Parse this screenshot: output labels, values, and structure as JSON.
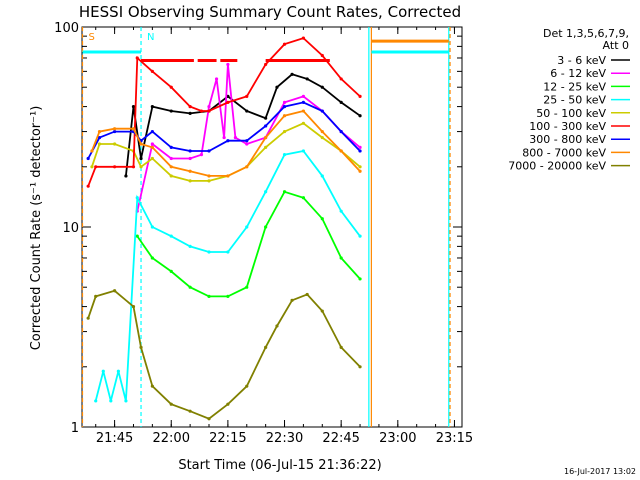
{
  "chart_data": {
    "type": "line",
    "title": "HESSI Observing Summary Count Rates, Corrected",
    "xlabel": "Start Time (06-Jul-15 21:36:22)",
    "ylabel": "Corrected Count Rate (s⁻¹ detector⁻¹)",
    "yscale": "log",
    "ylim": [
      1,
      100
    ],
    "xlim": [
      "21:36:22",
      "23:17:00"
    ],
    "x_ticks": [
      "21:45",
      "22:00",
      "22:15",
      "22:30",
      "22:45",
      "23:00",
      "23:15"
    ],
    "y_ticks": [
      "1",
      "10",
      "100"
    ],
    "footer": "16-Jul-2017 13:02",
    "legend": {
      "placement": "top-right",
      "header": [
        "Det 1,3,5,6,7,9,",
        "Att 0"
      ],
      "entries": [
        {
          "label": "3 - 6 keV",
          "color": "#000000"
        },
        {
          "label": "6 - 12 keV",
          "color": "#ff00ff"
        },
        {
          "label": "12 - 25 keV",
          "color": "#00ff00"
        },
        {
          "label": "25 - 50 keV",
          "color": "#00ffff"
        },
        {
          "label": "50 - 100 keV",
          "color": "#cccc00"
        },
        {
          "label": "100 - 300 keV",
          "color": "#ff0000"
        },
        {
          "label": "300 - 800 keV",
          "color": "#0000ff"
        },
        {
          "label": "800 - 7000 keV",
          "color": "#ff8800"
        },
        {
          "label": "7000 - 20000 keV",
          "color": "#808000"
        }
      ]
    },
    "markers": [
      {
        "label": "S",
        "x": "21:36:30",
        "color": "#ff8800"
      },
      {
        "label": "N",
        "x": "21:52:00",
        "color": "#00ffff"
      }
    ],
    "vlines": [
      {
        "x": "21:36:30",
        "color": "#ff8800",
        "style": "dashed"
      },
      {
        "x": "21:52:00",
        "color": "#00ffff",
        "style": "dashed"
      },
      {
        "x": "22:52:20",
        "color": "#00ffff",
        "style": "solid"
      },
      {
        "x": "22:53:00",
        "color": "#ff8800",
        "style": "solid"
      },
      {
        "x": "23:13:30",
        "color": "#00ffff",
        "style": "solid"
      },
      {
        "x": "23:13:50",
        "color": "#ff8800",
        "style": "dashed"
      }
    ],
    "flag_bars": [
      {
        "color": "#00ffff",
        "y": 75,
        "x": [
          "21:36:30",
          "21:52:00"
        ]
      },
      {
        "color": "#00ffff",
        "y": 75,
        "x": [
          "22:53:00",
          "23:13:30"
        ]
      },
      {
        "color": "#ff8800",
        "y": 85,
        "x": [
          "22:53:00",
          "23:13:30"
        ]
      },
      {
        "color": "#ff0000",
        "y": 68,
        "x": [
          "21:52:00",
          "22:06:00"
        ]
      },
      {
        "color": "#ff0000",
        "y": 68,
        "x": [
          "22:07:00",
          "22:12:00"
        ]
      },
      {
        "color": "#ff0000",
        "y": 68,
        "x": [
          "22:13:00",
          "22:17:30"
        ]
      },
      {
        "color": "#ff0000",
        "y": 68,
        "x": [
          "22:25:00",
          "22:42:00"
        ]
      }
    ],
    "series": [
      {
        "name": "3 - 6 keV",
        "color": "#000000",
        "x": [
          "21:48",
          "21:50",
          "21:52",
          "21:55",
          "22:00",
          "22:05",
          "22:10",
          "22:15",
          "22:20",
          "22:25",
          "22:28",
          "22:32",
          "22:36",
          "22:40",
          "22:45",
          "22:50"
        ],
        "y": [
          18,
          40,
          22,
          40,
          38,
          37,
          38,
          45,
          38,
          35,
          50,
          58,
          55,
          50,
          42,
          36
        ]
      },
      {
        "name": "6 - 12 keV",
        "color": "#ff00ff",
        "x": [
          "21:51",
          "21:55",
          "22:00",
          "22:05",
          "22:08",
          "22:10",
          "22:12",
          "22:14",
          "22:15",
          "22:17",
          "22:20",
          "22:25",
          "22:30",
          "22:35",
          "22:40",
          "22:45",
          "22:50"
        ],
        "y": [
          12,
          26,
          22,
          22,
          23,
          40,
          55,
          28,
          65,
          28,
          26,
          28,
          42,
          45,
          38,
          30,
          25
        ]
      },
      {
        "name": "12 - 25 keV",
        "color": "#00ff00",
        "x": [
          "21:51",
          "21:55",
          "22:00",
          "22:05",
          "22:10",
          "22:15",
          "22:20",
          "22:25",
          "22:30",
          "22:35",
          "22:40",
          "22:45",
          "22:50"
        ],
        "y": [
          9,
          7,
          6,
          5,
          4.5,
          4.5,
          5,
          10,
          15,
          14,
          11,
          7,
          5.5
        ]
      },
      {
        "name": "25 - 50 keV",
        "color": "#00ffff",
        "x": [
          "21:40",
          "21:42",
          "21:44",
          "21:46",
          "21:48",
          "21:51",
          "21:55",
          "22:00",
          "22:05",
          "22:10",
          "22:15",
          "22:20",
          "22:25",
          "22:30",
          "22:35",
          "22:40",
          "22:45",
          "22:50"
        ],
        "y": [
          1.35,
          1.9,
          1.35,
          1.9,
          1.35,
          14,
          10,
          9,
          8,
          7.5,
          7.5,
          10,
          15,
          23,
          24,
          18,
          12,
          9
        ]
      },
      {
        "name": "50 - 100 keV",
        "color": "#cccc00",
        "x": [
          "21:39",
          "21:41",
          "21:45",
          "21:50",
          "21:52",
          "21:55",
          "22:00",
          "22:05",
          "22:10",
          "22:15",
          "22:20",
          "22:25",
          "22:30",
          "22:35",
          "22:40",
          "22:45",
          "22:50"
        ],
        "y": [
          20,
          26,
          26,
          24,
          20,
          22,
          18,
          17,
          17,
          18,
          20,
          25,
          30,
          33,
          28,
          24,
          20
        ]
      },
      {
        "name": "100 - 300 keV",
        "color": "#ff0000",
        "x": [
          "21:38",
          "21:40",
          "21:45",
          "21:50",
          "21:51",
          "21:55",
          "22:00",
          "22:05",
          "22:08",
          "22:10",
          "22:15",
          "22:20",
          "22:25",
          "22:30",
          "22:35",
          "22:40",
          "22:45",
          "22:50"
        ],
        "y": [
          16,
          20,
          20,
          20,
          70,
          60,
          50,
          40,
          38,
          38,
          42,
          45,
          65,
          82,
          88,
          72,
          55,
          45
        ]
      },
      {
        "name": "300 - 800 keV",
        "color": "#0000ff",
        "x": [
          "21:38",
          "21:41",
          "21:45",
          "21:50",
          "21:52",
          "21:55",
          "22:00",
          "22:05",
          "22:10",
          "22:15",
          "22:20",
          "22:25",
          "22:30",
          "22:35",
          "22:40",
          "22:45",
          "22:50"
        ],
        "y": [
          22,
          28,
          30,
          30,
          27,
          30,
          25,
          24,
          24,
          27,
          27,
          32,
          40,
          42,
          38,
          30,
          24
        ]
      },
      {
        "name": "800 - 7000 keV",
        "color": "#ff8800",
        "x": [
          "21:39",
          "21:41",
          "21:45",
          "21:50",
          "21:52",
          "21:55",
          "22:00",
          "22:05",
          "22:10",
          "22:15",
          "22:20",
          "22:25",
          "22:30",
          "22:35",
          "22:40",
          "22:45",
          "22:50"
        ],
        "y": [
          24,
          30,
          31,
          31,
          26,
          25,
          20,
          19,
          18,
          18,
          20,
          28,
          36,
          38,
          30,
          24,
          19
        ]
      },
      {
        "name": "7000 - 20000 keV",
        "color": "#808000",
        "x": [
          "21:38",
          "21:40",
          "21:45",
          "21:50",
          "21:52",
          "21:55",
          "22:00",
          "22:05",
          "22:10",
          "22:15",
          "22:20",
          "22:25",
          "22:28",
          "22:32",
          "22:36",
          "22:40",
          "22:45",
          "22:50"
        ],
        "y": [
          3.5,
          4.5,
          4.8,
          4.0,
          2.5,
          1.6,
          1.3,
          1.2,
          1.1,
          1.3,
          1.6,
          2.5,
          3.2,
          4.3,
          4.6,
          3.8,
          2.5,
          2.0
        ]
      }
    ]
  }
}
